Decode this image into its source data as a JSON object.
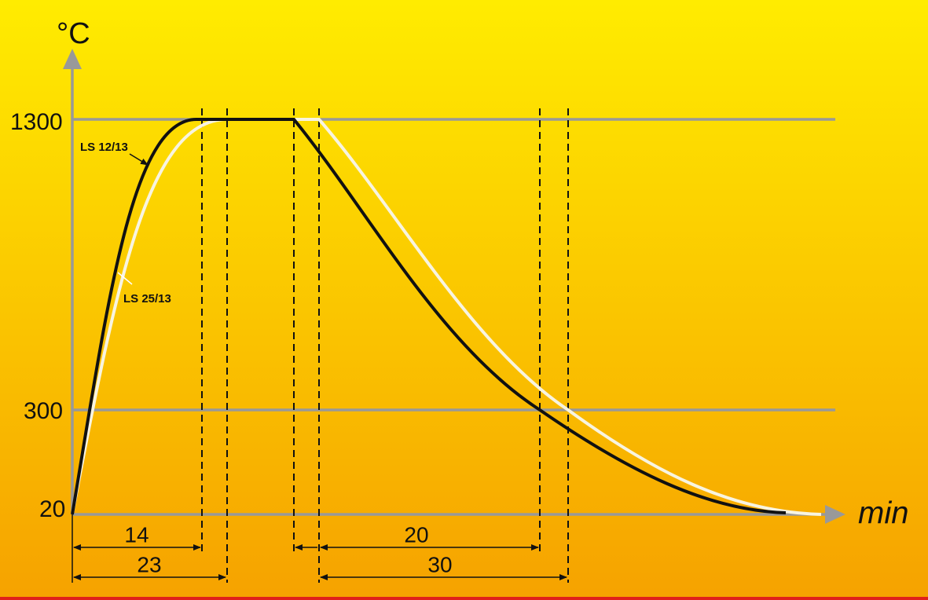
{
  "axis": {
    "y_unit": "°C",
    "x_unit": "min",
    "y_labels": [
      "1300",
      "300",
      "20"
    ]
  },
  "curves": [
    {
      "name": "LS 12/13"
    },
    {
      "name": "LS 25/13"
    }
  ],
  "dimensions": [
    "14",
    "23",
    "20",
    "30"
  ]
}
